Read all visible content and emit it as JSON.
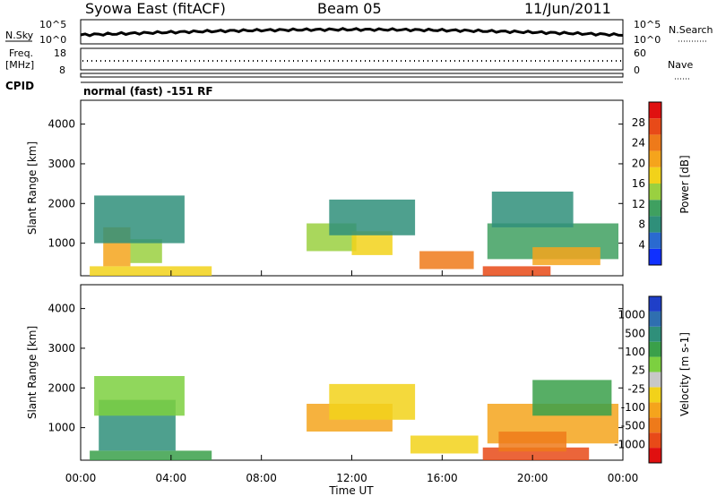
{
  "header": {
    "title": "Syowa East (fitACF)",
    "beam": "Beam 05",
    "date": "11/Jun/2011"
  },
  "top_panels": {
    "nsky_label": "N.Sky",
    "nsky_ticks": [
      "10^5",
      "10^0"
    ],
    "nsearch_label": "N.Search",
    "nsearch_ticks": [
      "10^5",
      "10^0"
    ],
    "freq_label_1": "Freq.",
    "freq_label_2": "[MHz]",
    "freq_ticks": [
      "18",
      "8"
    ],
    "nave_label": "Nave",
    "nave_ticks": [
      "60",
      "0"
    ],
    "cpid_label": "CPID",
    "cpid_value": "normal (fast) -151 RF"
  },
  "chart_data": [
    {
      "type": "heatmap",
      "name": "power",
      "ylabel": "Slant Range [km]",
      "xlabel": "Time UT",
      "x_ticks": [
        "00:00",
        "04:00",
        "08:00",
        "12:00",
        "16:00",
        "20:00",
        "00:00"
      ],
      "y_ticks": [
        1000,
        2000,
        3000,
        4000
      ],
      "ylim": [
        180,
        4600
      ],
      "xlim_hours": [
        0,
        24
      ],
      "colorbar_label": "Power [dB]",
      "colorbar_ticks": [
        "4",
        "8",
        "12",
        "16",
        "20",
        "24",
        "28"
      ],
      "colorbar_colors": [
        "#1030ff",
        "#2a6ad0",
        "#2f8f7a",
        "#3fa060",
        "#9ad040",
        "#f2d21a",
        "#f5a41c",
        "#ee7a1a",
        "#e84a18",
        "#e01010"
      ],
      "regions": [
        {
          "t0": 0.4,
          "t1": 5.8,
          "r0": 180,
          "r1": 420,
          "level": 5
        },
        {
          "t0": 1.0,
          "t1": 2.2,
          "r0": 420,
          "r1": 1400,
          "level": 6
        },
        {
          "t0": 2.2,
          "t1": 3.6,
          "r0": 500,
          "r1": 1100,
          "level": 4
        },
        {
          "t0": 0.6,
          "t1": 4.6,
          "r0": 1000,
          "r1": 2200,
          "level": 2
        },
        {
          "t0": 10.0,
          "t1": 12.2,
          "r0": 800,
          "r1": 1500,
          "level": 4
        },
        {
          "t0": 12.0,
          "t1": 13.8,
          "r0": 700,
          "r1": 1300,
          "level": 5
        },
        {
          "t0": 11.0,
          "t1": 14.8,
          "r0": 1200,
          "r1": 2100,
          "level": 2
        },
        {
          "t0": 15.0,
          "t1": 17.4,
          "r0": 350,
          "r1": 800,
          "level": 7
        },
        {
          "t0": 17.8,
          "t1": 20.8,
          "r0": 180,
          "r1": 420,
          "level": 8
        },
        {
          "t0": 18.0,
          "t1": 23.8,
          "r0": 600,
          "r1": 1500,
          "level": 3
        },
        {
          "t0": 20.0,
          "t1": 23.0,
          "r0": 450,
          "r1": 900,
          "level": 6
        },
        {
          "t0": 18.2,
          "t1": 21.8,
          "r0": 1400,
          "r1": 2300,
          "level": 2
        }
      ]
    },
    {
      "type": "heatmap",
      "name": "velocity",
      "ylabel": "Slant Range [km]",
      "xlabel": "Time UT",
      "x_ticks": [
        "00:00",
        "04:00",
        "08:00",
        "12:00",
        "16:00",
        "20:00",
        "00:00"
      ],
      "y_ticks": [
        1000,
        2000,
        3000,
        4000
      ],
      "ylim": [
        180,
        4600
      ],
      "xlim_hours": [
        0,
        24
      ],
      "colorbar_label": "Velocity [m s-1]",
      "colorbar_ticks": [
        "1000",
        "500",
        "100",
        "25",
        "-25",
        "-100",
        "-500",
        "-1000"
      ],
      "colorbar_colors": [
        "#1f3fc8",
        "#2f6fb0",
        "#2f8f7a",
        "#3aa04a",
        "#7cd040",
        "#c8c8c8",
        "#f2d21a",
        "#f5a41c",
        "#ee7a1a",
        "#e84a18",
        "#e01010"
      ],
      "regions": [
        {
          "t0": 0.4,
          "t1": 5.8,
          "r0": 180,
          "r1": 420,
          "level": 7
        },
        {
          "t0": 0.8,
          "t1": 4.2,
          "r0": 420,
          "r1": 1700,
          "level": 8
        },
        {
          "t0": 0.6,
          "t1": 4.6,
          "r0": 1300,
          "r1": 2300,
          "level": 6
        },
        {
          "t0": 10.0,
          "t1": 13.8,
          "r0": 900,
          "r1": 1600,
          "level": 3
        },
        {
          "t0": 11.0,
          "t1": 14.8,
          "r0": 1200,
          "r1": 2100,
          "level": 4
        },
        {
          "t0": 14.6,
          "t1": 17.6,
          "r0": 350,
          "r1": 800,
          "level": 4
        },
        {
          "t0": 17.8,
          "t1": 22.5,
          "r0": 180,
          "r1": 500,
          "level": 1
        },
        {
          "t0": 18.0,
          "t1": 23.8,
          "r0": 600,
          "r1": 1600,
          "level": 3
        },
        {
          "t0": 20.0,
          "t1": 23.5,
          "r0": 1300,
          "r1": 2200,
          "level": 7
        },
        {
          "t0": 18.5,
          "t1": 21.5,
          "r0": 400,
          "r1": 900,
          "level": 2
        }
      ]
    }
  ]
}
